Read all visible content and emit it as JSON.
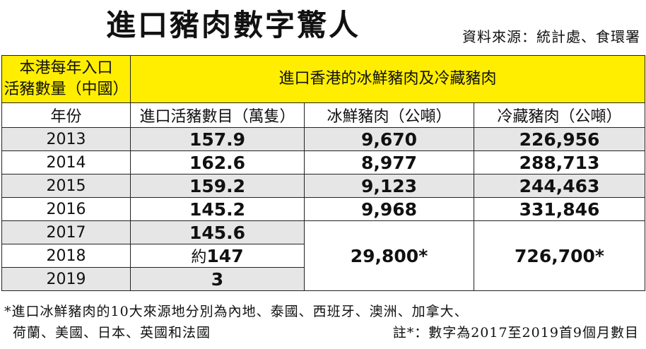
{
  "title": "進口豬肉數字驚人",
  "source": "資料來源：統計處、食環署",
  "table": {
    "header_left": "本港每年入口\n活豬數量（中國）",
    "header_right": "進口香港的冰鮮豬肉及冷藏豬肉",
    "columns": [
      "年份",
      "進口活豬數目（萬隻）",
      "冰鮮豬肉（公噸）",
      "冷藏豬肉（公噸）"
    ],
    "rows": [
      {
        "year": "2013",
        "live": "157.9",
        "chilled": "9,670",
        "frozen": "226,956"
      },
      {
        "year": "2014",
        "live": "162.6",
        "chilled": "8,977",
        "frozen": "288,713"
      },
      {
        "year": "2015",
        "live": "159.2",
        "chilled": "9,123",
        "frozen": "244,463"
      },
      {
        "year": "2016",
        "live": "145.2",
        "chilled": "9,968",
        "frozen": "331,846"
      },
      {
        "year": "2017",
        "live": "145.6"
      },
      {
        "year": "2018",
        "live_prefix": "約",
        "live": "147"
      },
      {
        "year": "2019",
        "live": "3"
      }
    ],
    "merged_chilled": "29,800*",
    "merged_frozen": "726,700*"
  },
  "footnotes": {
    "line1": "*進口冰鮮豬肉的10大來源地分別為內地、泰國、西班牙、澳洲、加拿大、",
    "line2": "荷蘭、美國、日本、英國和法國",
    "note": "註*：數字為2017至2019首9個月數目"
  }
}
